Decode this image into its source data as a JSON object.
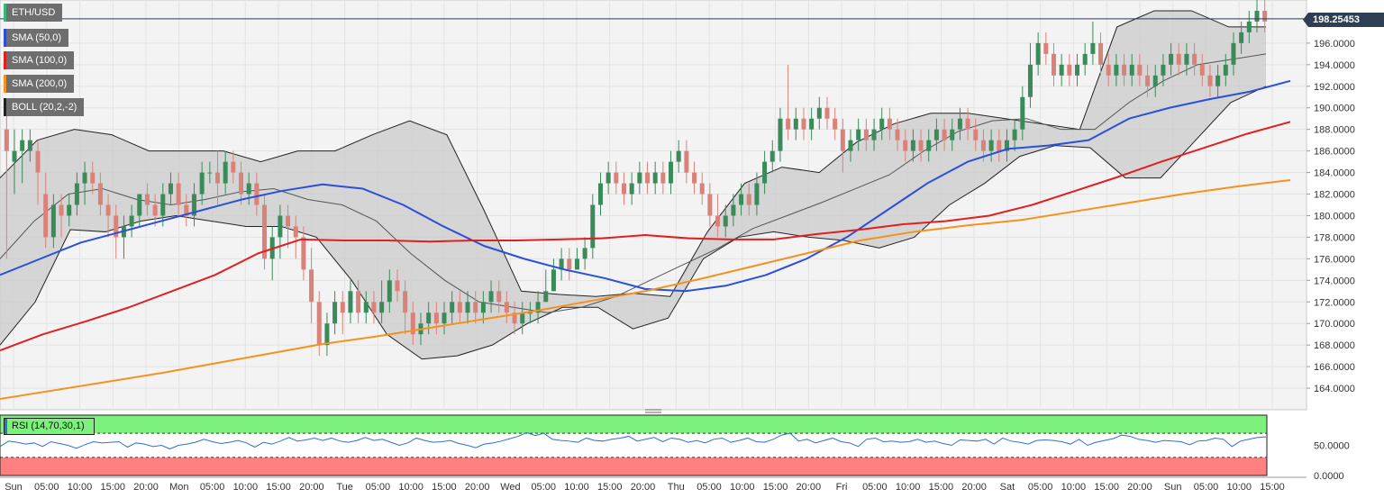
{
  "chart_data": {
    "type": "candlestick",
    "symbol": "ETH/USD",
    "last_price": "198.25453",
    "ylim": [
      162,
      200
    ],
    "y_ticks": [
      "196.0000",
      "194.0000",
      "192.0000",
      "190.0000",
      "188.0000",
      "186.0000",
      "184.0000",
      "182.0000",
      "180.0000",
      "178.0000",
      "176.0000",
      "174.0000",
      "172.0000",
      "170.0000",
      "168.0000",
      "166.0000",
      "164.0000"
    ],
    "x_ticks": [
      "Sun",
      "05:00",
      "10:00",
      "15:00",
      "20:00",
      "Mon",
      "05:00",
      "10:00",
      "15:00",
      "20:00",
      "Tue",
      "05:00",
      "10:00",
      "15:00",
      "20:00",
      "Wed",
      "05:00",
      "10:00",
      "15:00",
      "20:00",
      "Thu",
      "05:00",
      "10:00",
      "15:00",
      "20:00",
      "Fri",
      "05:00",
      "10:00",
      "15:00",
      "20:00",
      "Sat",
      "05:00",
      "10:00",
      "15:00",
      "20:00",
      "Sun",
      "05:00",
      "10:00",
      "15:00"
    ],
    "indicators": [
      {
        "label": "SMA (50,0)",
        "color": "#2c4fd8"
      },
      {
        "label": "SMA (100,0)",
        "color": "#e02020"
      },
      {
        "label": "SMA (200,0)",
        "color": "#f5921e"
      },
      {
        "label": "BOLL (20,2,-2)",
        "color": "#222222"
      }
    ],
    "series": [
      {
        "name": "SMA (50,0)",
        "y": [
          174.5,
          176.0,
          177.5,
          178.5,
          179.5,
          180.5,
          181.5,
          182.3,
          182.9,
          182.5,
          181.0,
          179.0,
          177.2,
          176.0,
          175.0,
          174.2,
          173.2,
          173.0,
          173.5,
          174.5,
          176.0,
          178.0,
          180.5,
          183.0,
          185.0,
          186.2,
          186.5,
          187.0,
          189.0,
          190.0,
          190.8,
          191.5,
          192.5
        ]
      },
      {
        "name": "SMA (100,0)",
        "y": [
          167.5,
          169.0,
          170.2,
          171.5,
          173.0,
          174.5,
          176.5,
          177.8,
          177.7,
          177.7,
          177.6,
          177.7,
          177.7,
          177.8,
          177.9,
          178.2,
          177.9,
          177.8,
          177.8,
          178.3,
          178.7,
          179.2,
          179.5,
          180.0,
          181.0,
          182.3,
          183.6,
          185.0,
          186.3,
          187.6,
          188.7
        ]
      },
      {
        "name": "SMA (200,0)",
        "y": [
          163.0,
          163.8,
          164.6,
          165.4,
          166.3,
          167.2,
          168.1,
          168.8,
          169.6,
          170.4,
          171.2,
          172.1,
          173.0,
          174.1,
          175.3,
          176.5,
          177.7,
          178.5,
          179.1,
          179.6,
          180.4,
          181.2,
          182.0,
          182.7,
          183.3
        ]
      },
      {
        "name": "BOLL upper",
        "y": [
          183.5,
          187.0,
          188.0,
          187.5,
          186.0,
          186.0,
          186.0,
          185.0,
          186.0,
          186.0,
          187.5,
          188.8,
          187.5,
          180.5,
          173.0,
          172.7,
          172.5,
          172.8,
          172.5,
          178.5,
          183.0,
          184.5,
          184.0,
          186.8,
          188.5,
          189.5,
          189.5,
          189.0,
          188.5,
          188.0,
          197.5,
          199.0,
          199.0,
          197.5,
          197.5
        ]
      },
      {
        "name": "BOLL lower",
        "y": [
          168.0,
          172.0,
          178.7,
          178.5,
          179.5,
          180.0,
          179.5,
          179.0,
          179.0,
          178.0,
          174.0,
          169.0,
          166.7,
          167.0,
          168.0,
          170.0,
          171.5,
          171.5,
          169.5,
          170.5,
          176.0,
          178.0,
          178.5,
          178.0,
          177.7,
          177.0,
          178.0,
          181.0,
          183.0,
          185.5,
          186.5,
          186.3,
          183.5,
          183.5,
          187.0,
          190.5,
          192.0
        ]
      },
      {
        "name": "BOLL middle",
        "y": [
          176.0,
          179.5,
          182.0,
          182.5,
          181.5,
          181.0,
          181.5,
          182.2,
          182.5,
          181.5,
          181.0,
          179.5,
          176.5,
          174.0,
          172.0,
          171.5,
          171.0,
          171.5,
          172.5,
          174.0,
          175.5,
          177.0,
          178.8,
          180.0,
          181.2,
          182.5,
          183.8,
          186.0,
          187.8,
          188.8,
          189.0,
          188.0,
          188.0,
          190.5,
          192.5,
          194.0,
          194.5,
          195.0
        ]
      },
      {
        "name": "RSI",
        "y": [
          48,
          57,
          55,
          52,
          54,
          48,
          56,
          53,
          50,
          45,
          51,
          56,
          54,
          55,
          56,
          47,
          54,
          52,
          48,
          50,
          44,
          50,
          52,
          55,
          60,
          56,
          53,
          55,
          58,
          54,
          47,
          55,
          52,
          57,
          63,
          57,
          59,
          62,
          58,
          62,
          57,
          55,
          58,
          63,
          58,
          60,
          55,
          50,
          54,
          62,
          58,
          55,
          56,
          58,
          53,
          50,
          46,
          52,
          54,
          57,
          61,
          65,
          71,
          66,
          70,
          60,
          58,
          57,
          55,
          62,
          58,
          57,
          60,
          62,
          65,
          57,
          60,
          63,
          56,
          62,
          60,
          55,
          58,
          54,
          60,
          62,
          55,
          58,
          62,
          56,
          55,
          60,
          67,
          70,
          57,
          60,
          54,
          58,
          62,
          56,
          54,
          48,
          60,
          62,
          56,
          57,
          55,
          56,
          60,
          55,
          57,
          53,
          50,
          59,
          58,
          57,
          60,
          52,
          62,
          57,
          55,
          52,
          58,
          59,
          58,
          56,
          52,
          60,
          50,
          55,
          58,
          61,
          67,
          65,
          60,
          58,
          55,
          58,
          57,
          56,
          51,
          57,
          58,
          62,
          60,
          48,
          57,
          60,
          63,
          64
        ]
      }
    ],
    "candles": [
      [
        188,
        186,
        190,
        176
      ],
      [
        185,
        186,
        188,
        182
      ],
      [
        186,
        187,
        188,
        183
      ],
      [
        186,
        187,
        188,
        185
      ],
      [
        186,
        184,
        187,
        181
      ],
      [
        182,
        178,
        184,
        177
      ],
      [
        178,
        181,
        182,
        177
      ],
      [
        181,
        180,
        182,
        178
      ],
      [
        180,
        181,
        182,
        179
      ],
      [
        181,
        183,
        184,
        180
      ],
      [
        183,
        184,
        185,
        181
      ],
      [
        184,
        183,
        185,
        182
      ],
      [
        183,
        181,
        184,
        180
      ],
      [
        181,
        180,
        182,
        178
      ],
      [
        180,
        178,
        181,
        176
      ],
      [
        178,
        179,
        180,
        176
      ],
      [
        179,
        180,
        181,
        178
      ],
      [
        180,
        182,
        182,
        179
      ],
      [
        182,
        181,
        183,
        180
      ],
      [
        181,
        180,
        182,
        179
      ],
      [
        180,
        182,
        183,
        179
      ],
      [
        182,
        183,
        184,
        181
      ],
      [
        183,
        181,
        184,
        180
      ],
      [
        181,
        180,
        182,
        179
      ],
      [
        180,
        182,
        183,
        179
      ],
      [
        182,
        184,
        185,
        181
      ],
      [
        184,
        184,
        185,
        183
      ],
      [
        184,
        183,
        186,
        181
      ],
      [
        183,
        185,
        186,
        182
      ],
      [
        185,
        184,
        186,
        183
      ],
      [
        184,
        182,
        185,
        181
      ],
      [
        182,
        183,
        184,
        181
      ],
      [
        183,
        181,
        184,
        180
      ],
      [
        181,
        176,
        182,
        175
      ],
      [
        176,
        178,
        179,
        174
      ],
      [
        178,
        180,
        181,
        176
      ],
      [
        180,
        179,
        181,
        177
      ],
      [
        179,
        178,
        180,
        176
      ],
      [
        178,
        175,
        179,
        174
      ],
      [
        175,
        172,
        177,
        170
      ],
      [
        172,
        168,
        173,
        167
      ],
      [
        168,
        170,
        171,
        167
      ],
      [
        170,
        172,
        173,
        169
      ],
      [
        172,
        171,
        173,
        169
      ],
      [
        171,
        173,
        174,
        170
      ],
      [
        173,
        171,
        174,
        170
      ],
      [
        171,
        172,
        173,
        170
      ],
      [
        172,
        171,
        173,
        170
      ],
      [
        171,
        172,
        174,
        170
      ],
      [
        172,
        174,
        175,
        171
      ],
      [
        174,
        173,
        175,
        172
      ],
      [
        173,
        171,
        174,
        169
      ],
      [
        171,
        169,
        172,
        168
      ],
      [
        169,
        170,
        171,
        168
      ],
      [
        170,
        171,
        172,
        169
      ],
      [
        171,
        170,
        172,
        169
      ],
      [
        170,
        171,
        172,
        169
      ],
      [
        171,
        172,
        173,
        170
      ],
      [
        172,
        171,
        173,
        170
      ],
      [
        171,
        172,
        173,
        170
      ],
      [
        172,
        171,
        173,
        170
      ],
      [
        171,
        172,
        173,
        170
      ],
      [
        172,
        173,
        174,
        171
      ],
      [
        173,
        172,
        174,
        171
      ],
      [
        172,
        171,
        173,
        170
      ],
      [
        171,
        170,
        172,
        169
      ],
      [
        170,
        171,
        172,
        169
      ],
      [
        171,
        171,
        172,
        170
      ],
      [
        171,
        172,
        173,
        170
      ],
      [
        172,
        173,
        175,
        172
      ],
      [
        173,
        175,
        176,
        173
      ],
      [
        175,
        176,
        177,
        174
      ],
      [
        176,
        175,
        177,
        174
      ],
      [
        175,
        176,
        177,
        175
      ],
      [
        176,
        177,
        178,
        175
      ],
      [
        177,
        181,
        182,
        176
      ],
      [
        181,
        183,
        184,
        180
      ],
      [
        183,
        184,
        185,
        182
      ],
      [
        184,
        183,
        185,
        182
      ],
      [
        183,
        182,
        184,
        181
      ],
      [
        182,
        183,
        184,
        181
      ],
      [
        183,
        184,
        185,
        182
      ],
      [
        184,
        183,
        185,
        182
      ],
      [
        183,
        184,
        185,
        182
      ],
      [
        184,
        183,
        185,
        182
      ],
      [
        183,
        185,
        186,
        182
      ],
      [
        185,
        186,
        187,
        184
      ],
      [
        186,
        184,
        187,
        183
      ],
      [
        184,
        183,
        185,
        182
      ],
      [
        183,
        182,
        184,
        181
      ],
      [
        182,
        180,
        183,
        179
      ],
      [
        180,
        179,
        182,
        178
      ],
      [
        179,
        180,
        181,
        178
      ],
      [
        180,
        181,
        182,
        179
      ],
      [
        181,
        182,
        183,
        180
      ],
      [
        182,
        181,
        183,
        180
      ],
      [
        181,
        183,
        184,
        180
      ],
      [
        183,
        185,
        186,
        182
      ],
      [
        185,
        186,
        187,
        184
      ],
      [
        186,
        189,
        190,
        185
      ],
      [
        189,
        188,
        194,
        187
      ],
      [
        188,
        189,
        190,
        187
      ],
      [
        189,
        188,
        190,
        187
      ],
      [
        188,
        189,
        190,
        187
      ],
      [
        189,
        190,
        191,
        188
      ],
      [
        190,
        189,
        191,
        188
      ],
      [
        189,
        188,
        190,
        187
      ],
      [
        188,
        186,
        189,
        184
      ],
      [
        186,
        187,
        188,
        185
      ],
      [
        187,
        188,
        189,
        186
      ],
      [
        188,
        187,
        189,
        186
      ],
      [
        187,
        188,
        189,
        186
      ],
      [
        188,
        189,
        190,
        187
      ],
      [
        189,
        188,
        190,
        187
      ],
      [
        188,
        187,
        189,
        186
      ],
      [
        187,
        186,
        188,
        185
      ],
      [
        186,
        187,
        188,
        185
      ],
      [
        187,
        186,
        188,
        185
      ],
      [
        186,
        187,
        188,
        185
      ],
      [
        187,
        188,
        189,
        186
      ],
      [
        188,
        187,
        189,
        186
      ],
      [
        187,
        188,
        189,
        186
      ],
      [
        188,
        189,
        190,
        187
      ],
      [
        189,
        188,
        190,
        187
      ],
      [
        188,
        187,
        189,
        186
      ],
      [
        187,
        186,
        188,
        185
      ],
      [
        186,
        187,
        188,
        185
      ],
      [
        187,
        186,
        188,
        185
      ],
      [
        186,
        187,
        188,
        185
      ],
      [
        187,
        188,
        189,
        186
      ],
      [
        188,
        191,
        192,
        187
      ],
      [
        191,
        194,
        196,
        190
      ],
      [
        194,
        196,
        197,
        193
      ],
      [
        196,
        195,
        197,
        194
      ],
      [
        195,
        193,
        196,
        192
      ],
      [
        193,
        194,
        195,
        192
      ],
      [
        194,
        193,
        195,
        192
      ],
      [
        193,
        194,
        195,
        192
      ],
      [
        194,
        195,
        196,
        193
      ],
      [
        195,
        196,
        198,
        194
      ],
      [
        196,
        194,
        197,
        193
      ],
      [
        194,
        193,
        195,
        192
      ],
      [
        193,
        194,
        195,
        192
      ],
      [
        194,
        193,
        195,
        192
      ],
      [
        193,
        194,
        195,
        192
      ],
      [
        194,
        193,
        195,
        192
      ],
      [
        193,
        192,
        194,
        191
      ],
      [
        192,
        193,
        194,
        191
      ],
      [
        193,
        194,
        195,
        192
      ],
      [
        194,
        195,
        196,
        193
      ],
      [
        195,
        194,
        196,
        193
      ],
      [
        194,
        195,
        196,
        193
      ],
      [
        195,
        194,
        196,
        193
      ],
      [
        194,
        193,
        195,
        192
      ],
      [
        193,
        192,
        194,
        191
      ],
      [
        192,
        193,
        194,
        191
      ],
      [
        193,
        194,
        195,
        192
      ],
      [
        194,
        196,
        197,
        193
      ],
      [
        196,
        197,
        198,
        195
      ],
      [
        197,
        198,
        199,
        196
      ],
      [
        198,
        199,
        200,
        197
      ],
      [
        199,
        198,
        200,
        197
      ]
    ]
  },
  "rsi": {
    "label": "RSI (14,70,30,1)",
    "ticks": [
      "50.0000",
      "0.0000"
    ],
    "overbought": 70,
    "oversold": 30
  }
}
